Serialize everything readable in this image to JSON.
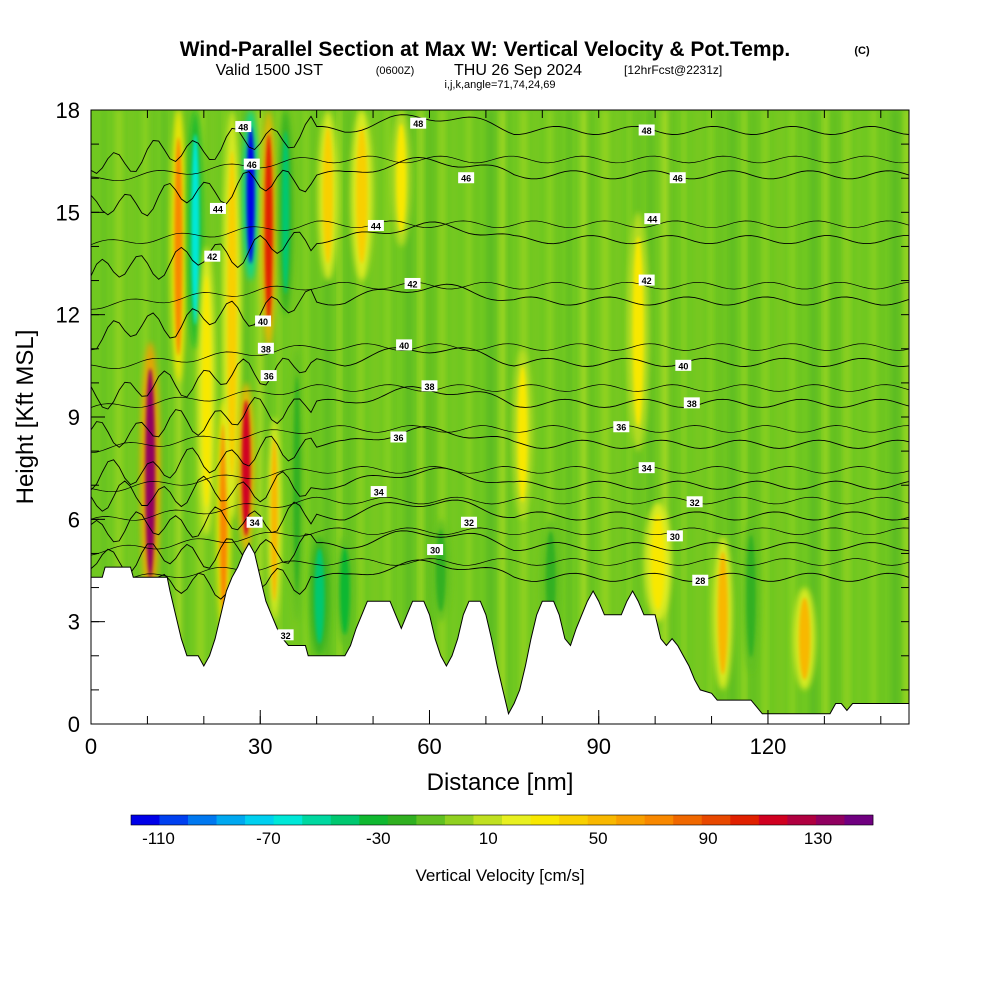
{
  "title": {
    "main": "Wind-Parallel Section at Max W: Vertical Velocity & Pot.Temp.",
    "copyright": "(C)",
    "valid_prefix": "Valid 1500 JST",
    "valid_utc": "(0600Z)",
    "valid_date": "THU 26 Sep 2024",
    "forecast": "[12hrFcst@2231z]",
    "indices": "i,j,k,angle=71,74,24,69"
  },
  "chart_data": {
    "type": "heatmap",
    "title": "Wind-Parallel Section at Max W: Vertical Velocity & Pot.Temp.",
    "xlabel": "Distance [nm]",
    "ylabel": "Height [Kft MSL]",
    "xlim": [
      0,
      145
    ],
    "ylim": [
      0,
      18
    ],
    "x_ticks": [
      0,
      30,
      60,
      90,
      120
    ],
    "y_ticks": [
      0,
      3,
      6,
      9,
      12,
      15,
      18
    ],
    "colorbar": {
      "label": "Vertical Velocity [cm/s]",
      "tick_labels": [
        "-110",
        "-70",
        "-30",
        "10",
        "50",
        "90",
        "130"
      ],
      "tick_values": [
        -110,
        -70,
        -30,
        10,
        50,
        90,
        130
      ],
      "min": -120,
      "max": 150,
      "colors": [
        "#0000e8",
        "#0040f0",
        "#0078f0",
        "#00a8f0",
        "#00d0f0",
        "#00e8d8",
        "#00d8a0",
        "#00c870",
        "#10b830",
        "#30b020",
        "#60c020",
        "#90d020",
        "#c0e020",
        "#e8f020",
        "#f8e800",
        "#f8d000",
        "#f8b800",
        "#f8a000",
        "#f88800",
        "#f06800",
        "#e84800",
        "#e02000",
        "#d00020",
        "#b00040",
        "#900060",
        "#700080"
      ]
    },
    "terrain": [
      [
        0,
        4.3
      ],
      [
        2,
        4.3
      ],
      [
        2.5,
        4.6
      ],
      [
        7,
        4.6
      ],
      [
        7.5,
        4.3
      ],
      [
        13.5,
        4.3
      ],
      [
        14,
        3.9
      ],
      [
        15,
        3.2
      ],
      [
        16,
        2.5
      ],
      [
        17,
        2.0
      ],
      [
        19,
        2.0
      ],
      [
        20,
        1.7
      ],
      [
        21,
        2.0
      ],
      [
        22,
        2.5
      ],
      [
        23,
        3.2
      ],
      [
        24,
        3.9
      ],
      [
        25,
        4.3
      ],
      [
        26,
        4.6
      ],
      [
        27,
        5.0
      ],
      [
        28,
        5.3
      ],
      [
        29,
        5.0
      ],
      [
        30,
        4.3
      ],
      [
        31,
        3.6
      ],
      [
        32,
        3.2
      ],
      [
        33,
        2.8
      ],
      [
        34,
        2.5
      ],
      [
        35,
        2.3
      ],
      [
        38,
        2.3
      ],
      [
        38.5,
        2.0
      ],
      [
        45,
        2.0
      ],
      [
        46,
        2.3
      ],
      [
        47,
        2.8
      ],
      [
        48,
        3.2
      ],
      [
        49,
        3.6
      ],
      [
        53,
        3.6
      ],
      [
        54,
        3.2
      ],
      [
        55,
        2.8
      ],
      [
        56,
        3.2
      ],
      [
        57,
        3.6
      ],
      [
        59,
        3.6
      ],
      [
        60,
        3.2
      ],
      [
        61,
        2.5
      ],
      [
        62,
        2.0
      ],
      [
        63,
        1.7
      ],
      [
        64,
        2.0
      ],
      [
        65,
        2.5
      ],
      [
        66,
        3.2
      ],
      [
        67,
        3.6
      ],
      [
        69,
        3.6
      ],
      [
        70,
        3.2
      ],
      [
        71,
        2.5
      ],
      [
        72,
        1.7
      ],
      [
        73,
        1.0
      ],
      [
        74,
        0.3
      ],
      [
        75,
        0.6
      ],
      [
        76,
        1.0
      ],
      [
        77,
        1.7
      ],
      [
        78,
        2.5
      ],
      [
        79,
        3.2
      ],
      [
        80,
        3.6
      ],
      [
        82,
        3.6
      ],
      [
        83,
        3.2
      ],
      [
        84,
        2.5
      ],
      [
        85,
        2.3
      ],
      [
        86,
        2.8
      ],
      [
        87,
        3.2
      ],
      [
        88,
        3.6
      ],
      [
        89,
        3.9
      ],
      [
        90,
        3.6
      ],
      [
        91,
        3.2
      ],
      [
        94,
        3.2
      ],
      [
        95,
        3.6
      ],
      [
        96,
        3.9
      ],
      [
        97,
        3.6
      ],
      [
        98,
        3.2
      ],
      [
        100,
        3.2
      ],
      [
        101,
        2.5
      ],
      [
        102,
        2.3
      ],
      [
        103,
        2.5
      ],
      [
        104,
        2.3
      ],
      [
        105,
        2.0
      ],
      [
        106,
        1.7
      ],
      [
        107,
        1.3
      ],
      [
        108,
        1.0
      ],
      [
        110,
        0.9
      ],
      [
        111,
        0.7
      ],
      [
        117,
        0.7
      ],
      [
        118,
        0.5
      ],
      [
        119,
        0.3
      ],
      [
        131,
        0.3
      ],
      [
        132,
        0.6
      ],
      [
        133,
        0.6
      ],
      [
        134,
        0.4
      ],
      [
        135,
        0.6
      ],
      [
        145,
        0.6
      ]
    ],
    "features": [
      {
        "x": 10.5,
        "w": 1.6,
        "y0": 3.5,
        "y1": 11.2,
        "value": 130
      },
      {
        "x": 15.5,
        "w": 1.3,
        "y0": 10,
        "y1": 18,
        "value": 70
      },
      {
        "x": 18.5,
        "w": 1.3,
        "y0": 11,
        "y1": 18,
        "value": -60
      },
      {
        "x": 20.5,
        "w": 1.4,
        "y0": 5.5,
        "y1": 14,
        "value": 35
      },
      {
        "x": 23.5,
        "w": 1.2,
        "y0": 2.5,
        "y1": 9.5,
        "value": 75
      },
      {
        "x": 25,
        "w": 1.5,
        "y0": 6,
        "y1": 18,
        "value": 45
      },
      {
        "x": 27.5,
        "w": 1.4,
        "y0": 5,
        "y1": 10,
        "value": 110
      },
      {
        "x": 28.3,
        "w": 1.3,
        "y0": 13,
        "y1": 18,
        "value": -110
      },
      {
        "x": 31.5,
        "w": 1.3,
        "y0": 11,
        "y1": 18,
        "value": 105
      },
      {
        "x": 32.5,
        "w": 1.1,
        "y0": 3,
        "y1": 9,
        "value": 55
      },
      {
        "x": 34.5,
        "w": 1.2,
        "y0": 12,
        "y1": 18,
        "value": -45
      },
      {
        "x": 36.5,
        "w": 1.1,
        "y0": 3,
        "y1": 11,
        "value": -25
      },
      {
        "x": 40.5,
        "w": 1.6,
        "y0": 2,
        "y1": 5.5,
        "value": -40
      },
      {
        "x": 42,
        "w": 1.6,
        "y0": 13,
        "y1": 18,
        "value": 45
      },
      {
        "x": 45,
        "w": 1.6,
        "y0": 2.3,
        "y1": 5.5,
        "value": -35
      },
      {
        "x": 48,
        "w": 1.8,
        "y0": 13,
        "y1": 18,
        "value": 40
      },
      {
        "x": 55,
        "w": 1.6,
        "y0": 14,
        "y1": 18,
        "value": 30
      },
      {
        "x": 62,
        "w": 1.6,
        "y0": 3,
        "y1": 6,
        "value": -25
      },
      {
        "x": 76.5,
        "w": 1.6,
        "y0": 6,
        "y1": 11,
        "value": 30
      },
      {
        "x": 81.5,
        "w": 1.6,
        "y0": 2.5,
        "y1": 6,
        "value": -20
      },
      {
        "x": 97,
        "w": 1.8,
        "y0": 8,
        "y1": 15,
        "value": 30
      },
      {
        "x": 100.5,
        "w": 2.2,
        "y0": 3,
        "y1": 6.5,
        "value": 35
      },
      {
        "x": 112,
        "w": 1.6,
        "y0": 1,
        "y1": 5.5,
        "value": 50
      },
      {
        "x": 117,
        "w": 1.5,
        "y0": 1.5,
        "y1": 6,
        "value": -25
      },
      {
        "x": 126.5,
        "w": 1.8,
        "y0": 1,
        "y1": 4,
        "value": 55
      }
    ],
    "isentrope_levels": [
      28,
      30,
      32,
      34,
      36,
      38,
      40,
      42,
      44,
      46,
      48
    ],
    "contour_labels": [
      {
        "text": "48",
        "x": 27,
        "y": 17.5
      },
      {
        "text": "48",
        "x": 58,
        "y": 17.6
      },
      {
        "text": "48",
        "x": 98.5,
        "y": 17.4
      },
      {
        "text": "46",
        "x": 28.5,
        "y": 16.4
      },
      {
        "text": "46",
        "x": 66.5,
        "y": 16.0
      },
      {
        "text": "46",
        "x": 104,
        "y": 16.0
      },
      {
        "text": "44",
        "x": 22.5,
        "y": 15.1
      },
      {
        "text": "44",
        "x": 50.5,
        "y": 14.6
      },
      {
        "text": "44",
        "x": 99.5,
        "y": 14.8
      },
      {
        "text": "42",
        "x": 21.5,
        "y": 13.7
      },
      {
        "text": "42",
        "x": 57,
        "y": 12.9
      },
      {
        "text": "42",
        "x": 98.5,
        "y": 13.0
      },
      {
        "text": "40",
        "x": 30.5,
        "y": 11.8
      },
      {
        "text": "40",
        "x": 55.5,
        "y": 11.1
      },
      {
        "text": "40",
        "x": 105,
        "y": 10.5
      },
      {
        "text": "38",
        "x": 31,
        "y": 11.0
      },
      {
        "text": "38",
        "x": 60,
        "y": 9.9
      },
      {
        "text": "38",
        "x": 106.5,
        "y": 9.4
      },
      {
        "text": "36",
        "x": 31.5,
        "y": 10.2
      },
      {
        "text": "36",
        "x": 54.5,
        "y": 8.4
      },
      {
        "text": "36",
        "x": 94,
        "y": 8.7
      },
      {
        "text": "34",
        "x": 29,
        "y": 5.9
      },
      {
        "text": "34",
        "x": 51,
        "y": 6.8
      },
      {
        "text": "34",
        "x": 98.5,
        "y": 7.5
      },
      {
        "text": "32",
        "x": 34.5,
        "y": 2.6
      },
      {
        "text": "32",
        "x": 67,
        "y": 5.9
      },
      {
        "text": "32",
        "x": 107,
        "y": 6.5
      },
      {
        "text": "30",
        "x": 61,
        "y": 5.1
      },
      {
        "text": "30",
        "x": 103.5,
        "y": 5.5
      },
      {
        "text": "28",
        "x": 108,
        "y": 4.2
      }
    ]
  }
}
